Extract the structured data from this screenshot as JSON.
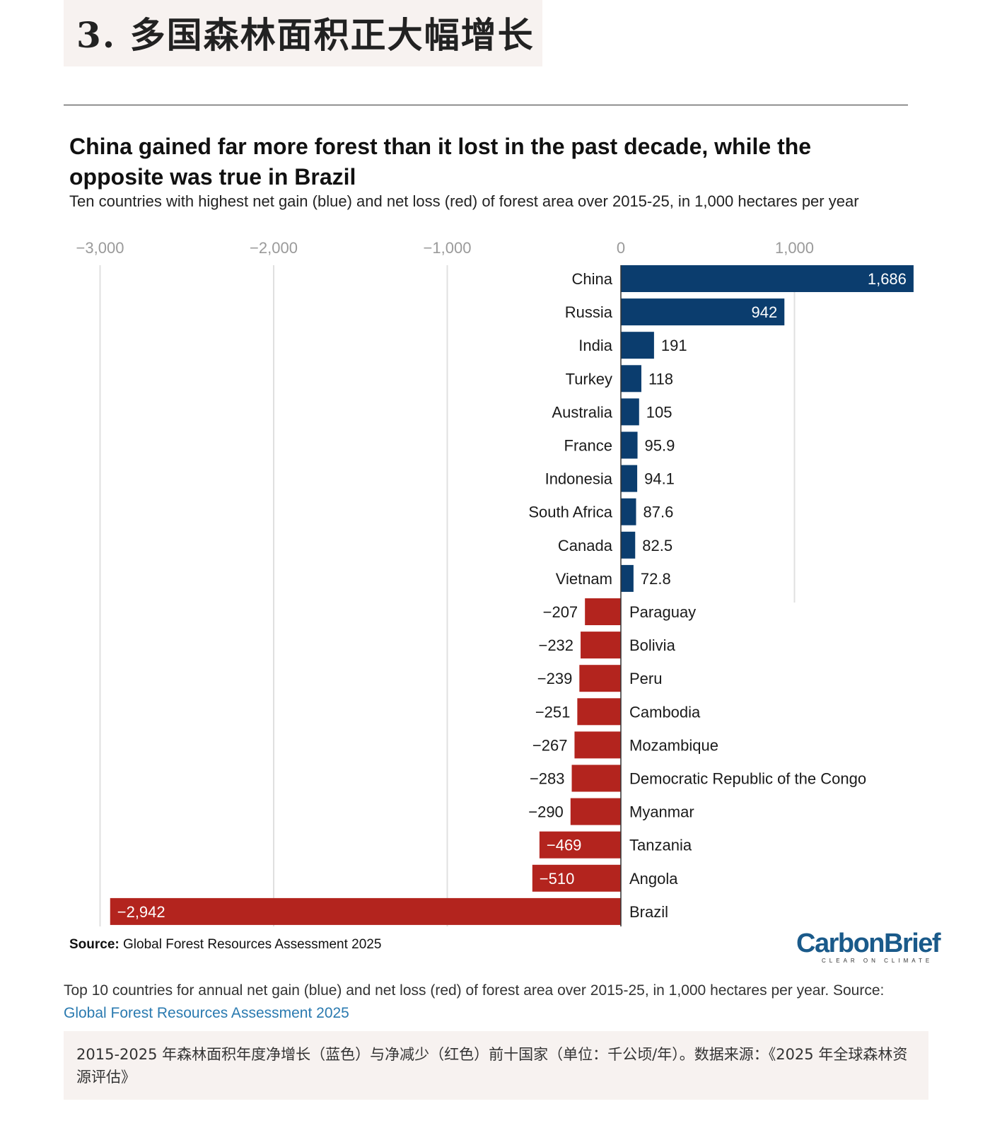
{
  "section": {
    "title": "3. 多国森林面积正大幅增长"
  },
  "header": {
    "title": "China gained far more forest than it lost in the past decade, while the opposite was true in Brazil",
    "subtitle": "Ten countries with highest net gain (blue) and net loss (red) of forest area over 2015-25, in 1,000 hectares per year"
  },
  "colors": {
    "gain": "#0b3d6e",
    "loss": "#b3241e",
    "grid": "#e0e0e0",
    "axis_text": "#9a9a9a"
  },
  "chart_data": {
    "type": "bar",
    "orientation": "horizontal",
    "title": "China gained far more forest than it lost in the past decade, while the opposite was true in Brazil",
    "xlabel": "",
    "ylabel": "",
    "xlim": [
      -3000,
      1500
    ],
    "xticks": [
      -3000,
      -2000,
      -1000,
      0,
      1000
    ],
    "xtick_labels": [
      "−3,000",
      "−2,000",
      "−1,000",
      "0",
      "1,000"
    ],
    "categories": [
      "China",
      "Russia",
      "India",
      "Turkey",
      "Australia",
      "France",
      "Indonesia",
      "South Africa",
      "Canada",
      "Vietnam",
      "Paraguay",
      "Bolivia",
      "Peru",
      "Cambodia",
      "Mozambique",
      "Democratic Republic of the Congo",
      "Myanmar",
      "Tanzania",
      "Angola",
      "Brazil"
    ],
    "values": [
      1686,
      942,
      191,
      118,
      105,
      95.9,
      94.1,
      87.6,
      82.5,
      72.8,
      -207,
      -232,
      -239,
      -251,
      -267,
      -283,
      -290,
      -469,
      -510,
      -2942
    ],
    "value_labels": [
      "1,686",
      "942",
      "191",
      "118",
      "105",
      "95.9",
      "94.1",
      "87.6",
      "82.5",
      "72.8",
      "−207",
      "−232",
      "−239",
      "−251",
      "−267",
      "−283",
      "−290",
      "−469",
      "−510",
      "−2,942"
    ],
    "grid": true
  },
  "source": {
    "label": "Source:",
    "text": "Global Forest Resources Assessment 2025"
  },
  "logo": {
    "name": "CarbonBrief",
    "tagline": "CLEAR ON CLIMATE"
  },
  "caption": {
    "text": "Top 10 countries for annual net gain (blue) and net loss (red) of forest area over 2015-25, in 1,000 hectares per year. Source: ",
    "link": "Global Forest Resources Assessment 2025"
  },
  "cn_caption": "2015-2025 年森林面积年度净增长（蓝色）与净减少（红色）前十国家（单位：千公顷/年）。数据来源：《2025 年全球森林资源评估》"
}
